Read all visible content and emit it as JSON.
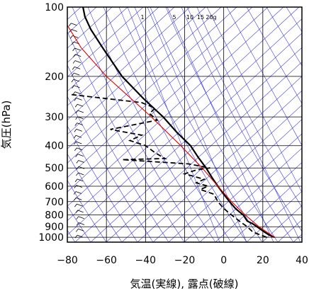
{
  "chart_data": {
    "type": "skew-t",
    "xlabel": "気温(実線), 露点(破線)",
    "ylabel": "気圧(hPa)",
    "x_ticks": [
      -80,
      -60,
      -40,
      -20,
      0,
      20,
      40
    ],
    "x_range": [
      -80,
      40
    ],
    "p_ticks": [
      100,
      200,
      300,
      400,
      500,
      600,
      700,
      800,
      900,
      1000
    ],
    "p_range": [
      1050,
      100
    ],
    "y_scale": "log",
    "mixing_ratio_labels": [
      "1",
      "5",
      "10",
      "15",
      "20g"
    ],
    "colors": {
      "temperature": "#000000",
      "dewpoint": "#000000",
      "parcel": "#e00000",
      "guide": "#3030e0",
      "grid": "#000000"
    },
    "series": [
      {
        "key": "temperature",
        "style": "solid",
        "points": [
          [
            1000,
            26
          ],
          [
            975,
            23
          ],
          [
            950,
            21
          ],
          [
            925,
            19
          ],
          [
            900,
            17
          ],
          [
            875,
            15
          ],
          [
            850,
            12
          ],
          [
            800,
            10
          ],
          [
            775,
            8
          ],
          [
            750,
            6
          ],
          [
            700,
            3
          ],
          [
            650,
            0
          ],
          [
            600,
            -3
          ],
          [
            550,
            -6
          ],
          [
            500,
            -9
          ],
          [
            450,
            -13
          ],
          [
            400,
            -17
          ],
          [
            350,
            -24
          ],
          [
            300,
            -31
          ],
          [
            250,
            -41
          ],
          [
            200,
            -52
          ],
          [
            150,
            -62
          ],
          [
            125,
            -68
          ],
          [
            110,
            -71
          ],
          [
            100,
            -72
          ]
        ]
      },
      {
        "key": "dewpoint",
        "style": "dashed",
        "points": [
          [
            1000,
            22
          ],
          [
            950,
            15
          ],
          [
            900,
            12
          ],
          [
            850,
            8
          ],
          [
            800,
            4
          ],
          [
            750,
            0
          ],
          [
            700,
            -3
          ],
          [
            650,
            -5
          ],
          [
            620,
            -12
          ],
          [
            600,
            -8
          ],
          [
            580,
            -14
          ],
          [
            560,
            -10
          ],
          [
            530,
            -20
          ],
          [
            510,
            -14
          ],
          [
            500,
            -7
          ],
          [
            480,
            -18
          ],
          [
            460,
            -52
          ],
          [
            455,
            -30
          ],
          [
            430,
            -35
          ],
          [
            400,
            -40
          ],
          [
            380,
            -48
          ],
          [
            360,
            -42
          ],
          [
            340,
            -58
          ],
          [
            310,
            -34
          ],
          [
            290,
            -38
          ],
          [
            275,
            -35
          ],
          [
            260,
            -42
          ],
          [
            240,
            -78
          ]
        ]
      },
      {
        "key": "parcel",
        "style": "solid",
        "points": [
          [
            1000,
            26
          ],
          [
            900,
            18
          ],
          [
            800,
            11
          ],
          [
            700,
            4
          ],
          [
            600,
            -3
          ],
          [
            500,
            -11
          ],
          [
            400,
            -22
          ],
          [
            300,
            -37
          ],
          [
            200,
            -60
          ],
          [
            150,
            -73
          ],
          [
            120,
            -80
          ]
        ]
      }
    ],
    "wind_barbs_x": -72,
    "wind_barbs_p_range": [
      1000,
      120
    ]
  }
}
